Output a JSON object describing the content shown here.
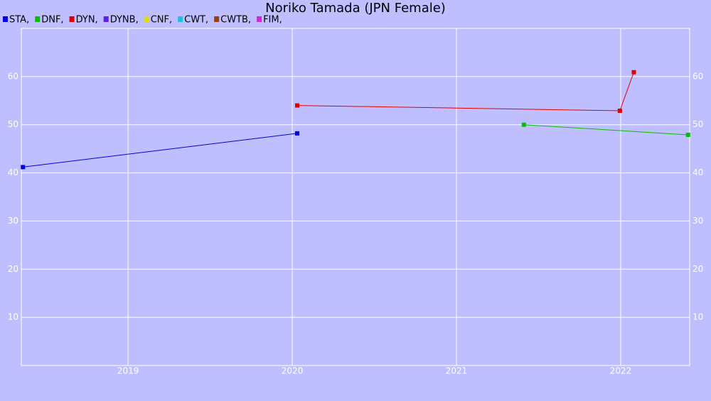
{
  "chart_data": {
    "type": "line",
    "title": "Noriko Tamada (JPN Female)",
    "series": [
      {
        "name": "STA,",
        "color": "#0000e0",
        "x": [
          2018.36,
          2020.03
        ],
        "values": [
          41.2,
          48.2
        ]
      },
      {
        "name": "DNF,",
        "color": "#00c000",
        "x": [
          2021.41,
          2022.41
        ],
        "values": [
          50.0,
          47.9
        ]
      },
      {
        "name": "DYN,",
        "color": "#e00000",
        "x": [
          2020.03,
          2021.995,
          2022.08
        ],
        "values": [
          54.0,
          52.9,
          60.9
        ]
      },
      {
        "name": "DYNB,",
        "color": "#6020e0",
        "x": [],
        "values": []
      },
      {
        "name": "CNF,",
        "color": "#e0e000",
        "x": [],
        "values": []
      },
      {
        "name": "CWT,",
        "color": "#20c0e0",
        "x": [],
        "values": []
      },
      {
        "name": "CWTB,",
        "color": "#a04000",
        "x": [],
        "values": []
      },
      {
        "name": "FIM,",
        "color": "#e020e0",
        "x": [],
        "values": []
      }
    ],
    "xlim": [
      2018.35,
      2022.42
    ],
    "xticks": [
      2019,
      2020,
      2021,
      2022
    ],
    "ylim": [
      0,
      70
    ],
    "yticks": [
      10,
      20,
      30,
      40,
      50,
      60
    ],
    "grid": true
  }
}
